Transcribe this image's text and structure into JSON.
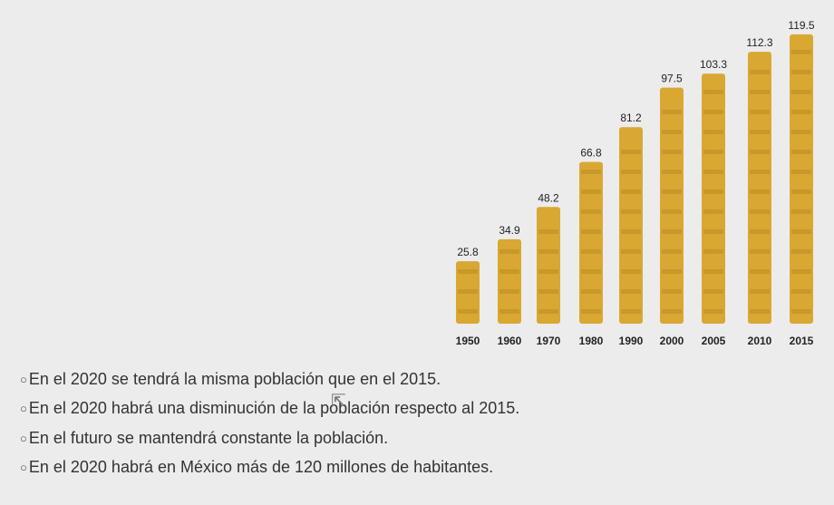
{
  "chart_data": {
    "type": "bar",
    "categories": [
      "1950",
      "1960",
      "1970",
      "1980",
      "1990",
      "2000",
      "2005",
      "2010",
      "2015"
    ],
    "values": [
      25.8,
      34.9,
      48.2,
      66.8,
      81.2,
      97.5,
      103.3,
      112.3,
      119.5
    ],
    "value_labels": [
      "25.8",
      "34.9",
      "48.2",
      "66.8",
      "81.2",
      "97.5",
      "103.3",
      "112.3",
      "119.5"
    ],
    "bar_color": "#d9a832",
    "bar_shade_color": "#b98a22",
    "label_color": "#222222"
  },
  "options": [
    {
      "label": "En el 2020 se tendrá la misma población que en el 2015."
    },
    {
      "label": "En el 2020 habrá una disminución de la población respecto al 2015."
    },
    {
      "label": "En el futuro se mantendrá constante la población."
    },
    {
      "label": "En el 2020 habrá en México más de 120 millones de habitantes."
    }
  ],
  "radio_glyph": "○"
}
